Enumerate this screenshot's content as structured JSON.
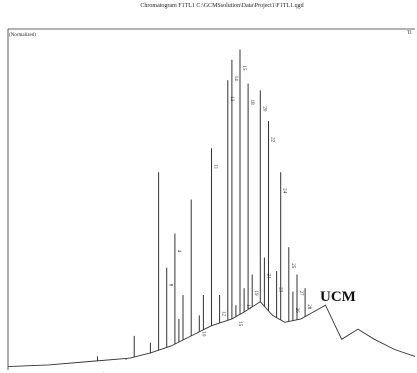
{
  "chart_data": {
    "type": "line",
    "title": "Chromatogram F1TL1 C:\\GCMSsolution\\Data\\Project1\\F1TL1.qgd",
    "ylabel": "(Normalized)",
    "corner_label": "TI",
    "annotation": "UCM",
    "x_range": [
      0,
      100
    ],
    "y_range": [
      0,
      100
    ],
    "series": [
      {
        "values": [
          [
            0,
            1
          ],
          [
            10,
            1.5
          ],
          [
            20,
            2.5
          ],
          [
            30,
            3.5
          ],
          [
            35,
            5
          ],
          [
            40,
            7
          ],
          [
            45,
            10
          ],
          [
            50,
            13
          ],
          [
            55,
            15
          ],
          [
            58,
            17
          ],
          [
            62,
            20
          ],
          [
            65,
            16
          ],
          [
            68,
            14
          ],
          [
            72,
            15
          ],
          [
            75,
            17
          ],
          [
            78,
            19
          ],
          [
            80,
            14
          ],
          [
            82,
            9
          ],
          [
            86,
            12
          ],
          [
            90,
            9
          ],
          [
            95,
            6
          ],
          [
            100,
            4
          ]
        ]
      }
    ],
    "peaks": [
      {
        "x": 22,
        "y": 4,
        "label": "7"
      },
      {
        "x": 29,
        "y": 3,
        "label": ""
      },
      {
        "x": 31,
        "y": 10,
        "label": ""
      },
      {
        "x": 35,
        "y": 8,
        "label": ""
      },
      {
        "x": 37,
        "y": 58,
        "label": ""
      },
      {
        "x": 39,
        "y": 30,
        "label": "8"
      },
      {
        "x": 41,
        "y": 40,
        "label": "4"
      },
      {
        "x": 42,
        "y": 15,
        "label": ""
      },
      {
        "x": 43,
        "y": 22,
        "label": ""
      },
      {
        "x": 45,
        "y": 50,
        "label": ""
      },
      {
        "x": 47,
        "y": 16,
        "label": "10"
      },
      {
        "x": 48,
        "y": 22,
        "label": ""
      },
      {
        "x": 50,
        "y": 65,
        "label": "11"
      },
      {
        "x": 52,
        "y": 22,
        "label": "12"
      },
      {
        "x": 54,
        "y": 85,
        "label": "13"
      },
      {
        "x": 55,
        "y": 91,
        "label": "14"
      },
      {
        "x": 56,
        "y": 19,
        "label": "15"
      },
      {
        "x": 57,
        "y": 94,
        "label": "15"
      },
      {
        "x": 58,
        "y": 24,
        "label": "17"
      },
      {
        "x": 59,
        "y": 84,
        "label": "18"
      },
      {
        "x": 60,
        "y": 28,
        "label": "19"
      },
      {
        "x": 62,
        "y": 82,
        "label": "20"
      },
      {
        "x": 63,
        "y": 33,
        "label": "21"
      },
      {
        "x": 64,
        "y": 73,
        "label": "22"
      },
      {
        "x": 66,
        "y": 29,
        "label": "23"
      },
      {
        "x": 67,
        "y": 58,
        "label": "24"
      },
      {
        "x": 69,
        "y": 36,
        "label": "25"
      },
      {
        "x": 70,
        "y": 23,
        "label": "26"
      },
      {
        "x": 71,
        "y": 28,
        "label": "27"
      },
      {
        "x": 73,
        "y": 24,
        "label": "28"
      }
    ],
    "grid": false,
    "legend": "none"
  }
}
